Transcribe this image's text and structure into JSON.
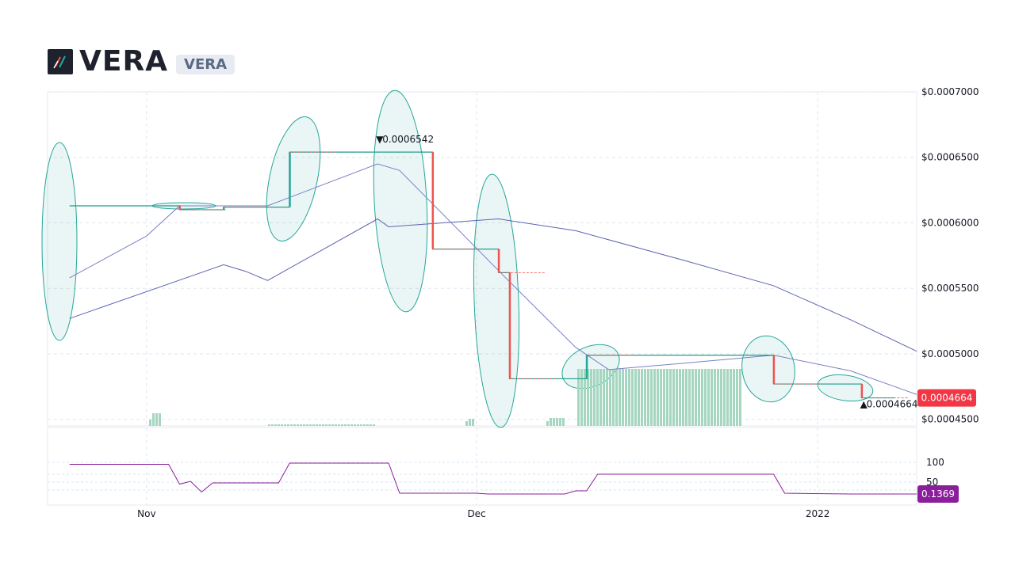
{
  "header": {
    "title": "VERA",
    "ticker_badge": "VERA",
    "logo_icon": "candlestick-logo-icon"
  },
  "colors": {
    "up": "#26a69a",
    "down": "#ef5350",
    "line": "#1f9d8a",
    "ma_fast": "#7b7fc4",
    "ma_slow": "#5c63b0",
    "volume": "#a5d6c0",
    "indicator": "#8b1e9b",
    "price_badge": "#f23645",
    "indicator_badge": "#8b1e9b",
    "grid": "#e0e6f0"
  },
  "chart_data": [
    {
      "type": "line",
      "title": "",
      "xlabel": "",
      "ylabel": "",
      "x_ticks": [
        "Nov",
        "Dec",
        "2022"
      ],
      "y_ticks": [
        "$0.0007000",
        "$0.0006500",
        "$0.0006000",
        "$0.0005500",
        "$0.0005000",
        "$0.0004500"
      ],
      "ylim": [
        0.000445,
        0.0007
      ],
      "grid": true,
      "series": [
        {
          "role": "price",
          "x": [
            "2021-10-25",
            "2021-11-02",
            "2021-11-04",
            "2021-11-08",
            "2021-11-12",
            "2021-11-14",
            "2021-11-22",
            "2021-11-27",
            "2021-12-02",
            "2021-12-03",
            "2021-12-04",
            "2021-12-09",
            "2021-12-10",
            "2021-12-11",
            "2021-12-15",
            "2021-12-28",
            "2022-01-01",
            "2022-01-05",
            "2022-01-08"
          ],
          "values": [
            0.000613,
            0.000613,
            0.00061,
            0.000612,
            0.000612,
            0.000654,
            0.000654,
            0.00058,
            0.00058,
            0.000562,
            0.000481,
            0.000481,
            0.000481,
            0.000499,
            0.000499,
            0.000477,
            0.000477,
            0.0004664,
            0.0004664
          ]
        },
        {
          "role": "moving-average-fast",
          "x": [
            "2021-10-25",
            "2021-11-01",
            "2021-11-04",
            "2021-11-12",
            "2021-11-22",
            "2021-11-24",
            "2021-12-04",
            "2021-12-10",
            "2021-12-13",
            "2021-12-20",
            "2021-12-28",
            "2022-01-04",
            "2022-01-10"
          ],
          "values": [
            0.000558,
            0.00059,
            0.000613,
            0.000613,
            0.000645,
            0.00064,
            0.000555,
            0.000505,
            0.000488,
            0.000493,
            0.000499,
            0.000487,
            0.000469
          ]
        },
        {
          "role": "moving-average-slow",
          "x": [
            "2021-10-25",
            "2021-11-08",
            "2021-11-10",
            "2021-11-12",
            "2021-11-22",
            "2021-11-23",
            "2021-12-03",
            "2021-12-10",
            "2021-12-20",
            "2021-12-28",
            "2022-01-04",
            "2022-01-10"
          ],
          "values": [
            0.000527,
            0.000568,
            0.000563,
            0.000556,
            0.000603,
            0.000597,
            0.000603,
            0.000594,
            0.000571,
            0.000552,
            0.000526,
            0.000502
          ]
        }
      ],
      "annotations": [
        {
          "label": "0.0006542",
          "x": "2021-11-22",
          "y": 0.0006542,
          "marker": "▼"
        },
        {
          "label": "0.0004664",
          "x": "2022-01-05",
          "y": 0.0004664,
          "marker": "▲"
        }
      ],
      "last_price_badge": "0.0004664"
    },
    {
      "type": "line",
      "title": "",
      "y_ticks": [
        "100",
        "50"
      ],
      "ylim": [
        0,
        110
      ],
      "series": [
        {
          "role": "indicator",
          "x": [
            "2021-10-25",
            "2021-11-03",
            "2021-11-04",
            "2021-11-05",
            "2021-11-06",
            "2021-11-07",
            "2021-11-13",
            "2021-11-14",
            "2021-11-23",
            "2021-11-24",
            "2021-12-01",
            "2021-12-02",
            "2021-12-09",
            "2021-12-10",
            "2021-12-11",
            "2021-12-12",
            "2021-12-28",
            "2021-12-29",
            "2022-01-04",
            "2022-01-10"
          ],
          "values": [
            95,
            95,
            45,
            52,
            25,
            48,
            48,
            98,
            98,
            22,
            22,
            20,
            20,
            28,
            28,
            70,
            70,
            22,
            20,
            20
          ]
        }
      ],
      "last_value_badge": "0.1369"
    }
  ]
}
